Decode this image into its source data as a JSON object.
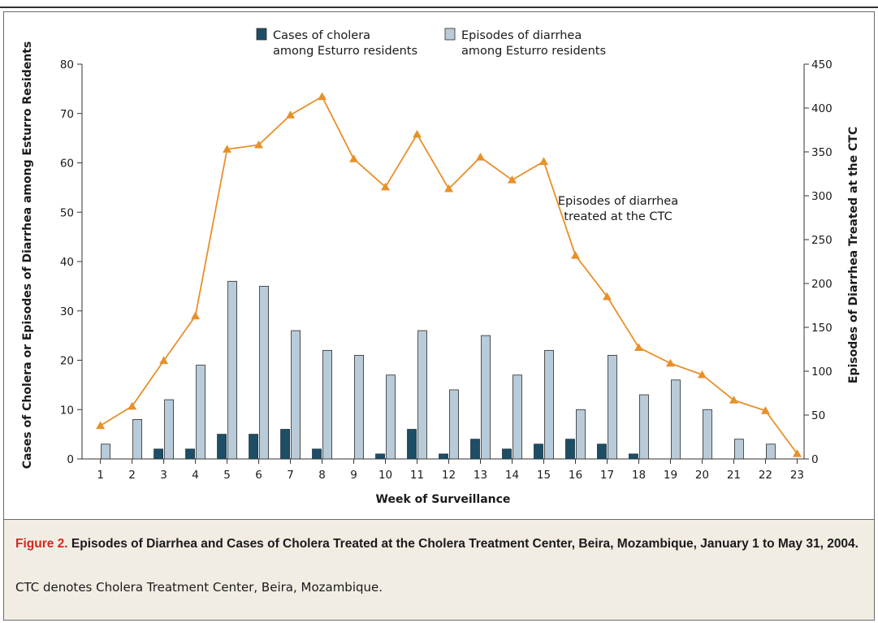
{
  "chart_data": {
    "type": "bar+line",
    "categories": [
      "1",
      "2",
      "3",
      "4",
      "5",
      "6",
      "7",
      "8",
      "9",
      "10",
      "11",
      "12",
      "13",
      "14",
      "15",
      "16",
      "17",
      "18",
      "19",
      "20",
      "21",
      "22",
      "23"
    ],
    "series": [
      {
        "name": "Cases of cholera among Esturro residents",
        "type": "bar",
        "axis": "left",
        "color": "#1e4e66",
        "values": [
          0,
          0,
          2,
          2,
          5,
          5,
          6,
          2,
          0,
          1,
          6,
          1,
          4,
          2,
          3,
          4,
          3,
          1,
          0,
          0,
          0,
          0,
          0
        ]
      },
      {
        "name": "Episodes of diarrhea among Esturro residents",
        "type": "bar",
        "axis": "left",
        "color": "#b9cbd8",
        "values": [
          3,
          8,
          12,
          19,
          36,
          35,
          26,
          22,
          21,
          17,
          26,
          14,
          25,
          17,
          22,
          10,
          21,
          13,
          16,
          10,
          4,
          3,
          0
        ]
      },
      {
        "name": "Episodes of diarrhea treated at the CTC",
        "type": "line",
        "axis": "right",
        "color": "#e8902a",
        "values": [
          38,
          60,
          112,
          163,
          353,
          358,
          392,
          413,
          342,
          310,
          370,
          308,
          344,
          318,
          339,
          232,
          185,
          127,
          109,
          96,
          67,
          55,
          6
        ]
      }
    ],
    "xlabel": "Week of Surveillance",
    "ylabel_left": "Cases of Cholera or Episodes of Diarrhea among Esturro Residents",
    "ylabel_right": "Episodes of Diarrhea Treated at the CTC",
    "ylim_left": [
      0,
      80
    ],
    "yticks_left": [
      0,
      10,
      20,
      30,
      40,
      50,
      60,
      70,
      80
    ],
    "ylim_right": [
      0,
      450
    ],
    "yticks_right": [
      0,
      50,
      100,
      150,
      200,
      250,
      300,
      350,
      400,
      450
    ],
    "legend": {
      "placement": "top-center",
      "items": [
        {
          "lines": [
            "Cases of cholera",
            "among Esturro residents"
          ]
        },
        {
          "lines": [
            "Episodes of diarrhea",
            "among Esturro residents"
          ]
        }
      ]
    },
    "annotation": {
      "lines": [
        "Episodes of diarrhea",
        "treated at the CTC"
      ]
    }
  },
  "caption": {
    "label": "Figure 2.",
    "title": " Episodes of Diarrhea and Cases of Cholera Treated at the Cholera Treatment Center, Beira, Mozambique, January 1 to May 31, 2004.",
    "text": "CTC denotes Cholera Treatment Center, Beira, Mozambique."
  },
  "colors": {
    "cholera_bar": "#1e4e66",
    "diarrhea_bar": "#b9cbd8",
    "ctc_line": "#e8902a",
    "caption_bg": "#f2ede3",
    "figure_label": "#d12a20"
  }
}
